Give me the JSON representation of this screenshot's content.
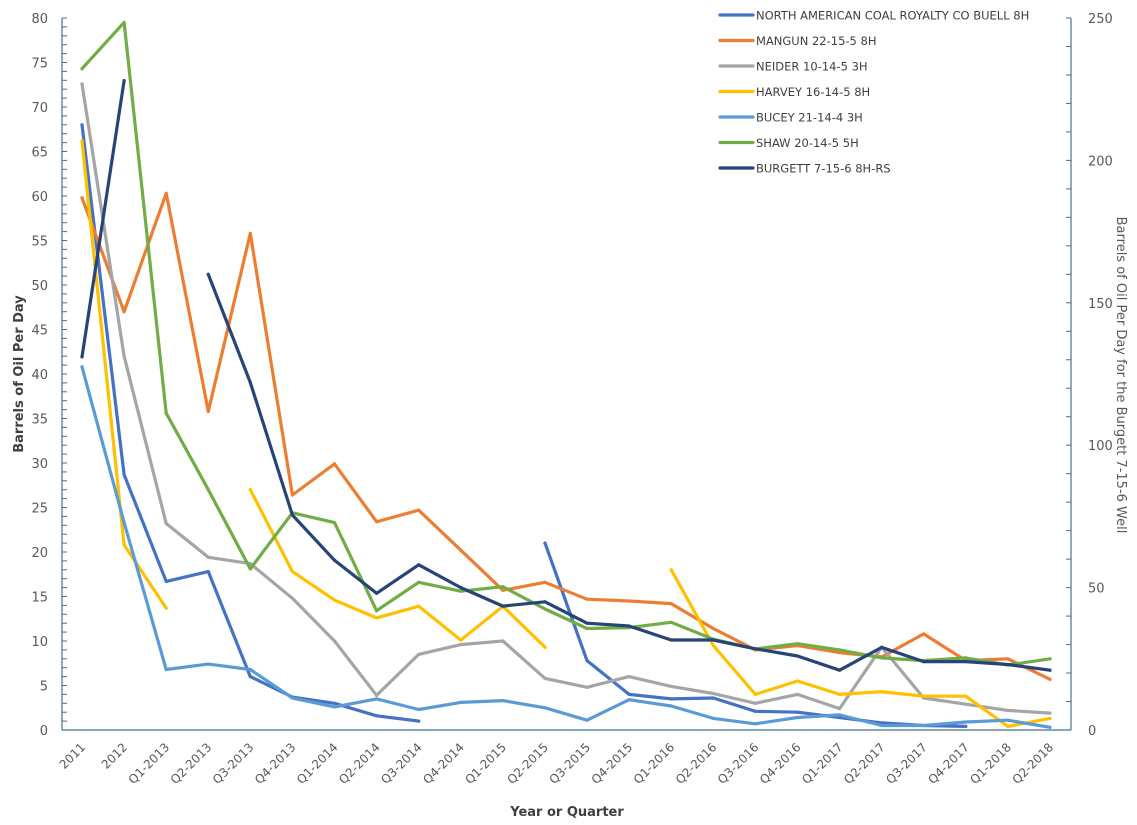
{
  "chart_data": {
    "type": "line",
    "title": "",
    "xlabel": "Year or Quarter",
    "ylabel": "Barrels of Oil Per Day",
    "y2label": "Barrels of Oil Per Day for the Burgett 7-15-6 Well",
    "ylim": [
      0,
      80
    ],
    "y2lim": [
      0,
      250
    ],
    "yticks": [
      "0",
      "5",
      "10",
      "15",
      "20",
      "25",
      "30",
      "35",
      "40",
      "45",
      "50",
      "55",
      "60",
      "65",
      "70",
      "75",
      "80"
    ],
    "y2ticks": [
      "0",
      "50",
      "100",
      "150",
      "200",
      "250"
    ],
    "grid": false,
    "legend_position": "top-right",
    "categories": [
      "2011",
      "2012",
      "Q1-2013",
      "Q2-2013",
      "Q3-2013",
      "Q4-2013",
      "Q1-2014",
      "Q2-2014",
      "Q3-2014",
      "Q4-2014",
      "Q1-2015",
      "Q2-2015",
      "Q3-2015",
      "Q4-2015",
      "Q1-2016",
      "Q2-2016",
      "Q3-2016",
      "Q4-2016",
      "Q1-2017",
      "Q2-2017",
      "Q3-2017",
      "Q4-2017",
      "Q1-2018",
      "Q2-2018"
    ],
    "series": [
      {
        "name": "NORTH AMERICAN COAL ROYALTY CO BUELL 8H",
        "color": "#4472C4",
        "axis": "left",
        "values": [
          68,
          28.7,
          16.7,
          17.8,
          6,
          3.7,
          3,
          1.6,
          1,
          null,
          null,
          21,
          7.8,
          4,
          3.5,
          3.6,
          2.1,
          2,
          1.4,
          0.8,
          0.5,
          0.4,
          null,
          null
        ]
      },
      {
        "name": "MANGUN 22-15-5 8H",
        "color": "#ED7D31",
        "axis": "left",
        "values": [
          59.8,
          47,
          60.3,
          35.8,
          55.8,
          26.4,
          29.9,
          23.4,
          24.7,
          20.2,
          15.7,
          16.6,
          14.7,
          14.5,
          14.2,
          11.4,
          9,
          9.5,
          8.7,
          8.2,
          10.8,
          7.8,
          8,
          5.7
        ]
      },
      {
        "name": "NEIDER 10-14-5 3H",
        "color": "#A5A5A5",
        "axis": "left",
        "values": [
          72.6,
          42,
          23.2,
          19.4,
          18.7,
          14.8,
          10,
          3.9,
          8.5,
          9.6,
          10,
          5.8,
          4.8,
          6,
          4.9,
          4.1,
          3,
          4,
          2.4,
          9.3,
          3.6,
          2.9,
          2.2,
          1.9
        ]
      },
      {
        "name": "HARVEY 16-14-5 8H",
        "color": "#FFC000",
        "axis": "left",
        "values": [
          66.2,
          20.8,
          13.7,
          null,
          27,
          17.8,
          14.6,
          12.6,
          13.9,
          10.1,
          13.9,
          9.3,
          null,
          null,
          18,
          9.5,
          4,
          5.5,
          4,
          4.3,
          3.8,
          3.8,
          0.4,
          1.3
        ]
      },
      {
        "name": "BUCEY 21-14-4 3H",
        "color": "#5B9BD5",
        "axis": "left",
        "values": [
          40.8,
          23.3,
          6.8,
          7.4,
          6.8,
          3.6,
          2.6,
          3.5,
          2.3,
          3.1,
          3.3,
          2.5,
          1.1,
          3.4,
          2.7,
          1.3,
          0.7,
          1.4,
          1.7,
          0.5,
          0.5,
          0.9,
          1.1,
          0.3
        ]
      },
      {
        "name": "SHAW 20-14-5 5H",
        "color": "#70AD47",
        "axis": "left",
        "values": [
          74.3,
          79.5,
          35.6,
          27,
          18.1,
          24.4,
          23.3,
          13.4,
          16.6,
          15.6,
          16.1,
          13.6,
          11.4,
          11.5,
          12.1,
          10.2,
          9.1,
          9.7,
          9,
          8.1,
          7.8,
          8.1,
          7.3,
          8
        ]
      },
      {
        "name": "BURGETT 7-15-6 8H-RS",
        "color": "#264478",
        "axis": "right",
        "values": [
          131,
          228,
          null,
          160,
          122,
          75.5,
          59.6,
          48,
          58,
          50,
          43.5,
          45,
          37.5,
          36.5,
          31.6,
          31.6,
          28.5,
          26,
          21,
          29,
          24,
          24,
          23,
          21
        ]
      }
    ]
  }
}
